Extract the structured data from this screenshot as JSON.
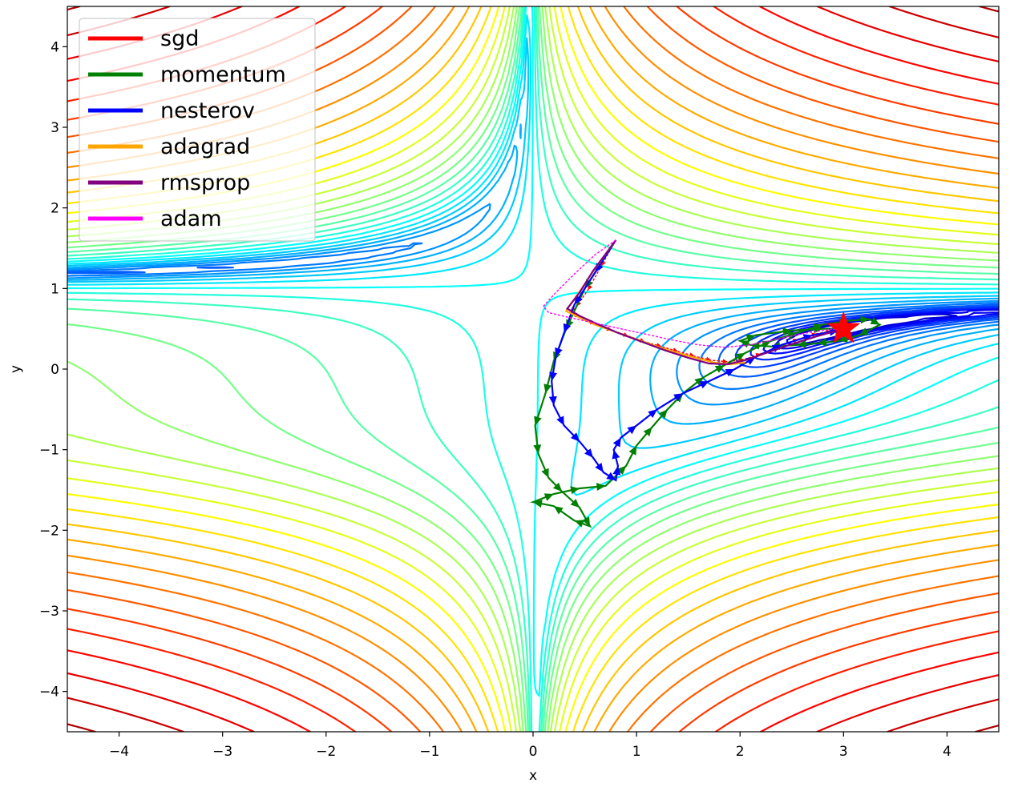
{
  "chart_data": {
    "type": "line",
    "title": "",
    "xlabel": "x",
    "ylabel": "y",
    "xlim": [
      -4.5,
      4.5
    ],
    "ylim": [
      -4.5,
      4.5
    ],
    "x_ticks": [
      {
        "value": -4,
        "label": "−4"
      },
      {
        "value": -3,
        "label": "−3"
      },
      {
        "value": -2,
        "label": "−2"
      },
      {
        "value": -1,
        "label": "−1"
      },
      {
        "value": 0,
        "label": "0"
      },
      {
        "value": 1,
        "label": "1"
      },
      {
        "value": 2,
        "label": "2"
      },
      {
        "value": 3,
        "label": "3"
      },
      {
        "value": 4,
        "label": "4"
      }
    ],
    "y_ticks": [
      {
        "value": -4,
        "label": "−4"
      },
      {
        "value": -3,
        "label": "−3"
      },
      {
        "value": -2,
        "label": "−2"
      },
      {
        "value": -1,
        "label": "−1"
      },
      {
        "value": 0,
        "label": "0"
      },
      {
        "value": 1,
        "label": "1"
      },
      {
        "value": 2,
        "label": "2"
      },
      {
        "value": 3,
        "label": "3"
      },
      {
        "value": 4,
        "label": "4"
      }
    ],
    "grid": false,
    "legend_position": "top-left",
    "background_contour": "log of Beale function, rainbow colormap (blue low, red high)",
    "minimum": {
      "x": 3.0,
      "y": 0.5,
      "marker": "star",
      "color": "#ff0000"
    },
    "start_point": {
      "x": 0.8,
      "y": 1.6
    },
    "series": [
      {
        "name": "sgd",
        "color": "#ff0000",
        "x": [
          0.8,
          0.66,
          0.53,
          0.42,
          0.36,
          0.45,
          0.6,
          0.76,
          0.92,
          1.08,
          1.24,
          1.4,
          1.56,
          1.72,
          1.88,
          2.04,
          2.2,
          2.38,
          2.56,
          2.74,
          2.88,
          3.0
        ],
        "y": [
          1.6,
          1.28,
          0.98,
          0.78,
          0.72,
          0.64,
          0.56,
          0.48,
          0.41,
          0.34,
          0.28,
          0.22,
          0.16,
          0.11,
          0.09,
          0.12,
          0.19,
          0.28,
          0.37,
          0.44,
          0.47,
          0.5
        ]
      },
      {
        "name": "momentum",
        "color": "#008000",
        "x": [
          0.8,
          0.5,
          0.32,
          0.2,
          0.12,
          0.02,
          0.05,
          0.15,
          0.28,
          0.45,
          0.55,
          0.4,
          0.2,
          0.0,
          0.2,
          0.45,
          0.7,
          0.9,
          1.0,
          1.15,
          1.3,
          1.45,
          1.65,
          1.85,
          2.05,
          2.3,
          2.55,
          2.8,
          3.05,
          3.25,
          3.35,
          3.15,
          2.95,
          2.75,
          2.55,
          2.3,
          2.1,
          2.0,
          2.15,
          2.5,
          2.8,
          3.0
        ],
        "y": [
          1.6,
          1.0,
          0.5,
          0.1,
          -0.3,
          -0.7,
          -1.05,
          -1.35,
          -1.52,
          -1.72,
          -1.95,
          -1.88,
          -1.7,
          -1.65,
          -1.55,
          -1.48,
          -1.45,
          -1.2,
          -0.95,
          -0.72,
          -0.5,
          -0.3,
          -0.1,
          0.05,
          0.2,
          0.35,
          0.45,
          0.55,
          0.6,
          0.62,
          0.55,
          0.42,
          0.35,
          0.32,
          0.3,
          0.28,
          0.3,
          0.35,
          0.42,
          0.48,
          0.5,
          0.5
        ]
      },
      {
        "name": "nesterov",
        "color": "#0000ff",
        "x": [
          0.8,
          0.6,
          0.4,
          0.3,
          0.22,
          0.18,
          0.2,
          0.3,
          0.45,
          0.58,
          0.68,
          0.8,
          0.82,
          0.78,
          0.85,
          1.0,
          1.2,
          1.45,
          1.7,
          1.95,
          2.15,
          2.4,
          2.7,
          2.95,
          3.0
        ],
        "y": [
          1.6,
          1.2,
          0.8,
          0.45,
          0.15,
          -0.15,
          -0.45,
          -0.7,
          -0.9,
          -1.1,
          -1.28,
          -1.38,
          -1.2,
          -1.0,
          -0.85,
          -0.7,
          -0.5,
          -0.3,
          -0.15,
          0.0,
          0.15,
          0.3,
          0.42,
          0.48,
          0.5
        ]
      },
      {
        "name": "adagrad",
        "color": "#ffa500",
        "x": [
          0.8,
          0.6,
          0.46,
          0.35,
          0.32,
          0.45,
          0.6,
          0.8,
          1.0,
          1.2,
          1.4,
          1.6,
          1.75,
          1.9,
          2.05
        ],
        "y": [
          1.6,
          1.25,
          0.98,
          0.78,
          0.72,
          0.64,
          0.55,
          0.46,
          0.37,
          0.28,
          0.2,
          0.13,
          0.08,
          0.06,
          0.08
        ]
      },
      {
        "name": "rmsprop",
        "color": "#800080",
        "x": [
          0.8,
          0.58,
          0.45,
          0.36,
          0.33,
          0.45,
          0.62,
          0.82,
          1.05,
          1.28,
          1.5,
          1.7,
          1.88,
          2.05,
          2.25,
          2.5,
          2.75,
          2.95,
          3.0
        ],
        "y": [
          1.6,
          1.22,
          0.95,
          0.8,
          0.75,
          0.66,
          0.56,
          0.45,
          0.34,
          0.23,
          0.14,
          0.07,
          0.06,
          0.11,
          0.2,
          0.31,
          0.41,
          0.48,
          0.5
        ]
      },
      {
        "name": "adam",
        "color": "#ff00ff",
        "x": [
          0.8,
          0.6,
          0.4,
          0.22,
          0.1,
          0.15,
          0.35,
          0.6,
          0.85,
          1.1,
          1.35,
          1.6,
          1.85,
          2.1,
          2.35,
          2.6,
          2.85,
          3.0
        ],
        "y": [
          1.6,
          1.42,
          1.18,
          0.95,
          0.78,
          0.7,
          0.64,
          0.57,
          0.5,
          0.43,
          0.36,
          0.3,
          0.27,
          0.3,
          0.37,
          0.44,
          0.49,
          0.5
        ]
      }
    ]
  }
}
